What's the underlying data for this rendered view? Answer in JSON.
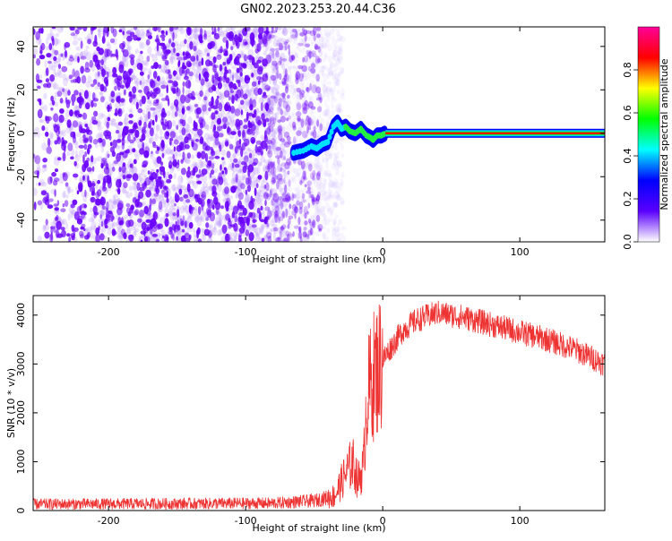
{
  "title": "GN02.2023.253.20.44.C36",
  "chart_data": [
    {
      "type": "heatmap",
      "name": "spectrogram",
      "xlabel": "Height of straight line (km)",
      "ylabel": "Frequency (Hz)",
      "xlim": [
        -255,
        162
      ],
      "ylim": [
        -50,
        49
      ],
      "xticks": [
        -200,
        -100,
        0,
        100
      ],
      "yticks": [
        -40,
        -20,
        0,
        20,
        40
      ],
      "colorbar": {
        "label": "Normalized spectral amplitude",
        "range": [
          0,
          1
        ],
        "ticks": [
          "0.0",
          "0.2",
          "0.4",
          "0.6",
          "0.8"
        ],
        "colors": [
          "#ffffff",
          "#5a00ff",
          "#0000ff",
          "#00ffff",
          "#00ff00",
          "#ffff00",
          "#ff0000",
          "#ff0099"
        ]
      },
      "noise_region": {
        "x_end": -45,
        "color": "#6a00ff"
      },
      "signal_track": {
        "points": [
          [
            -65,
            -9
          ],
          [
            -58,
            -8
          ],
          [
            -52,
            -6
          ],
          [
            -48,
            -7
          ],
          [
            -44,
            -5
          ],
          [
            -40,
            -4
          ],
          [
            -36,
            3
          ],
          [
            -33,
            5
          ],
          [
            -30,
            2
          ],
          [
            -27,
            3
          ],
          [
            -24,
            1
          ],
          [
            -20,
            0
          ],
          [
            -16,
            2
          ],
          [
            -12,
            -1
          ],
          [
            -9,
            -2
          ],
          [
            -7,
            -3
          ],
          [
            -4,
            -1
          ],
          [
            -1,
            -1
          ],
          [
            2,
            0
          ],
          [
            162,
            0
          ]
        ],
        "line_color": "#ff0000"
      }
    },
    {
      "type": "line",
      "name": "snr",
      "xlabel": "Height of straight line (km)",
      "ylabel": "SNR (10 * v/v)",
      "xlim": [
        -255,
        162
      ],
      "ylim": [
        0,
        4400
      ],
      "xticks": [
        -200,
        -100,
        0,
        100
      ],
      "yticks": [
        0,
        1000,
        2000,
        3000,
        4000
      ],
      "color": "#ee3333",
      "envelope": [
        [
          -255,
          130
        ],
        [
          -150,
          140
        ],
        [
          -80,
          150
        ],
        [
          -50,
          200
        ],
        [
          -35,
          300
        ],
        [
          -28,
          700
        ],
        [
          -22,
          1000
        ],
        [
          -18,
          600
        ],
        [
          -14,
          900
        ],
        [
          -12,
          2200
        ],
        [
          -8,
          2700
        ],
        [
          -2,
          3000
        ],
        [
          5,
          3300
        ],
        [
          15,
          3700
        ],
        [
          25,
          3900
        ],
        [
          40,
          4050
        ],
        [
          60,
          3950
        ],
        [
          80,
          3800
        ],
        [
          100,
          3650
        ],
        [
          120,
          3500
        ],
        [
          140,
          3300
        ],
        [
          162,
          3000
        ]
      ]
    }
  ]
}
